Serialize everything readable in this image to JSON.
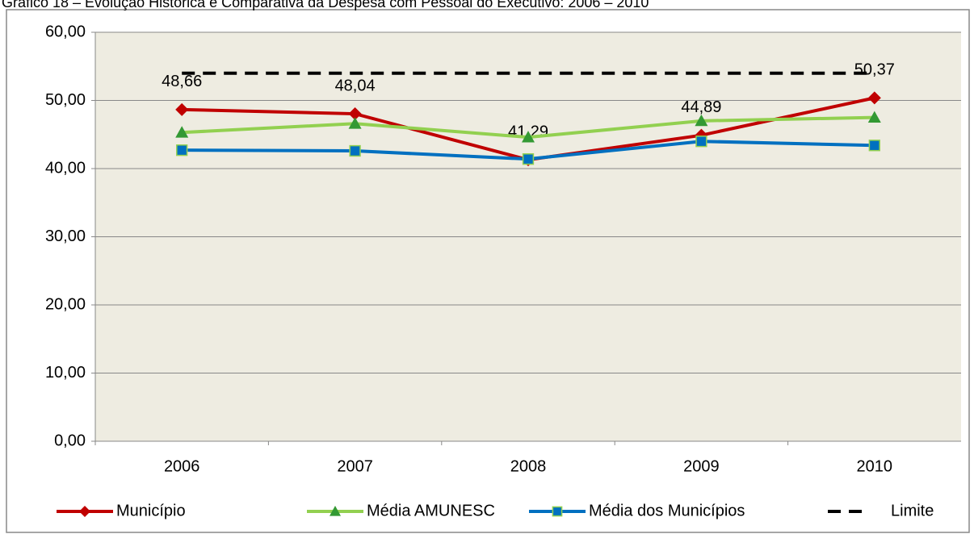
{
  "chart_data": {
    "type": "line",
    "title": "Gráfico 18 – Evolução Histórica e Comparativa da Despesa com Pessoal do Executivo: 2006 – 2010",
    "categories": [
      "2006",
      "2007",
      "2008",
      "2009",
      "2010"
    ],
    "series": [
      {
        "name": "Município",
        "color": "#c00000",
        "marker": "diamond",
        "values": [
          48.66,
          48.04,
          41.29,
          44.89,
          50.37
        ],
        "value_labels": [
          "48,66",
          "48,04",
          "41,29",
          "44,89",
          "50,37"
        ]
      },
      {
        "name": "Média AMUNESC",
        "color": "#92d050",
        "marker": "triangle",
        "values": [
          45.3,
          46.6,
          44.6,
          47.0,
          47.5
        ]
      },
      {
        "name": "Média dos Municípios",
        "color": "#0070c0",
        "marker": "square",
        "values": [
          42.7,
          42.6,
          41.4,
          44.0,
          43.4
        ]
      },
      {
        "name": "Limite",
        "color": "#000000",
        "marker": "none",
        "dashed": true,
        "values": [
          54,
          54,
          54,
          54,
          54
        ]
      }
    ],
    "ylim": [
      0,
      60
    ],
    "yticks": [
      {
        "value": 0,
        "label": "0,00"
      },
      {
        "value": 10,
        "label": "10,00"
      },
      {
        "value": 20,
        "label": "20,00"
      },
      {
        "value": 30,
        "label": "30,00"
      },
      {
        "value": 40,
        "label": "40,00"
      },
      {
        "value": 50,
        "label": "50,00"
      },
      {
        "value": 60,
        "label": "60,00"
      }
    ],
    "grid": true,
    "legend": "bottom"
  }
}
